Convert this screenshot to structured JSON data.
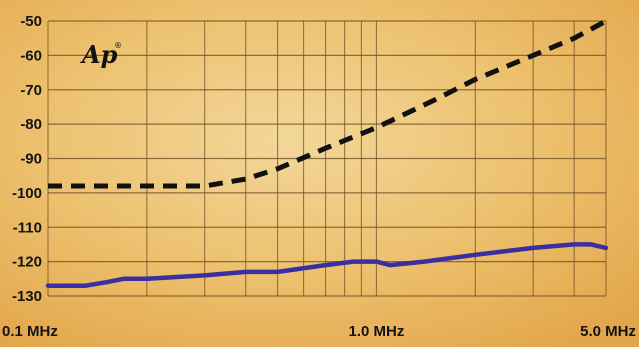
{
  "logo": {
    "text": "Ap",
    "mark": "®"
  },
  "chart_data": {
    "type": "line",
    "title": "",
    "xlabel": "",
    "ylabel": "",
    "x_scale": "log",
    "xlim": [
      0.1,
      5.0
    ],
    "ylim": [
      -130,
      -50
    ],
    "grid": true,
    "y_ticks": [
      -50,
      -60,
      -70,
      -80,
      -90,
      -100,
      -110,
      -120,
      -130
    ],
    "y_tick_labels": [
      "-50",
      "-60",
      "-70",
      "-80",
      "-90",
      "-100",
      "-110",
      "-120",
      "-130"
    ],
    "x_tick_labels": [
      {
        "value": 0.1,
        "label": "0.1 MHz"
      },
      {
        "value": 1.0,
        "label": "1.0 MHz"
      },
      {
        "value": 5.0,
        "label": "5.0 MHz"
      }
    ],
    "series": [
      {
        "style": "dashed",
        "color": "#111111",
        "x": [
          0.1,
          0.15,
          0.2,
          0.3,
          0.4,
          0.5,
          0.7,
          1.0,
          1.5,
          2.0,
          3.0,
          4.0,
          5.0
        ],
        "y": [
          -98,
          -98,
          -98,
          -98,
          -96,
          -93,
          -87,
          -81,
          -73,
          -67,
          -60,
          -55,
          -50
        ]
      },
      {
        "style": "solid",
        "color": "#3a2fa0",
        "x": [
          0.1,
          0.13,
          0.15,
          0.17,
          0.2,
          0.3,
          0.4,
          0.5,
          0.7,
          0.85,
          1.0,
          1.1,
          1.4,
          2.0,
          3.0,
          4.0,
          4.5,
          5.0
        ],
        "y": [
          -127,
          -127,
          -126,
          -125,
          -125,
          -124,
          -123,
          -123,
          -121,
          -120,
          -120,
          -121,
          -120,
          -118,
          -116,
          -115,
          -115,
          -116
        ]
      }
    ]
  },
  "colors": {
    "background": "#e8b45c",
    "grid": "#6b4e22",
    "text": "#141414"
  }
}
